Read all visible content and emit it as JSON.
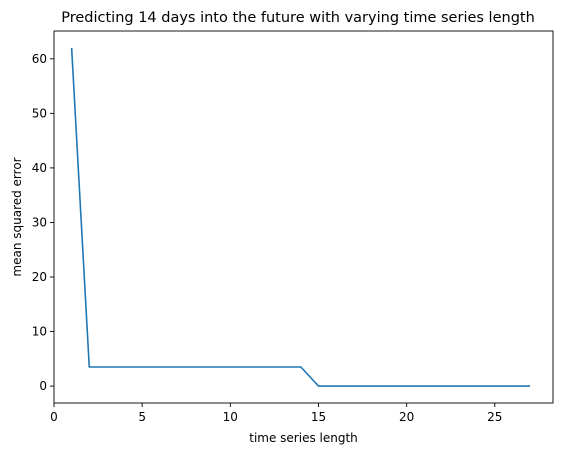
{
  "chart_data": {
    "type": "line",
    "title": "Predicting 14 days into the future with varying time series length",
    "xlabel": "time series length",
    "ylabel": "mean squared error",
    "xlim": [
      0,
      28.3
    ],
    "ylim": [
      -3.1,
      65.1
    ],
    "xticks": [
      0,
      5,
      10,
      15,
      20,
      25
    ],
    "yticks": [
      0,
      10,
      20,
      30,
      40,
      50,
      60
    ],
    "grid": false,
    "series": [
      {
        "color": "#1f77b4",
        "x": [
          1,
          2,
          3,
          4,
          5,
          6,
          7,
          8,
          9,
          10,
          11,
          12,
          13,
          14,
          15,
          16,
          17,
          18,
          19,
          20,
          21,
          22,
          23,
          24,
          25,
          26,
          27
        ],
        "y": [
          62.0,
          3.5,
          3.5,
          3.5,
          3.5,
          3.5,
          3.5,
          3.5,
          3.5,
          3.5,
          3.5,
          3.5,
          3.5,
          3.5,
          0.0,
          0.0,
          0.0,
          0.0,
          0.0,
          0.0,
          0.0,
          0.0,
          0.0,
          0.0,
          0.0,
          0.0,
          0.0
        ]
      }
    ]
  }
}
